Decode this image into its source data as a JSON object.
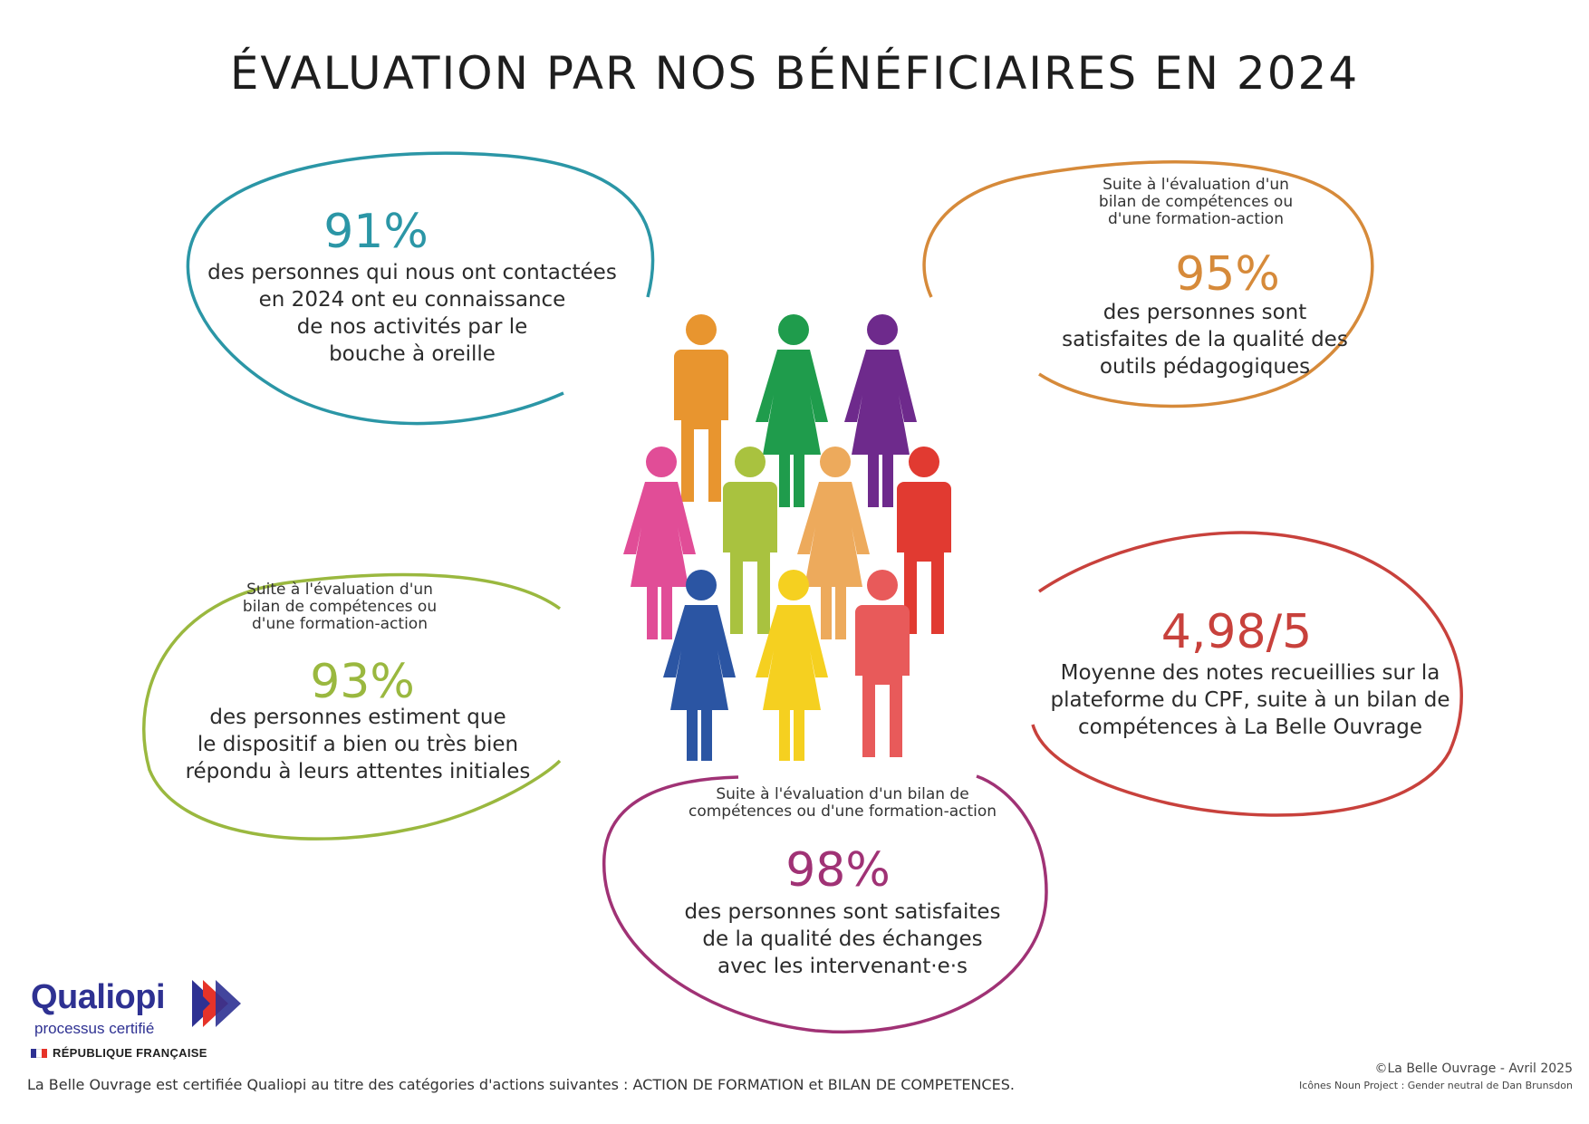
{
  "title": "ÉVALUATION PAR NOS BÉNÉFICIAIRES EN 2024",
  "colors": {
    "teal": "#2b96a6",
    "orange": "#d68a3a",
    "green": "#9ab83f",
    "red": "#c8413c",
    "purple": "#a03275"
  },
  "stats": [
    {
      "value": "91%",
      "context": [],
      "description": [
        "des personnes qui nous ont contactées",
        "en 2024 ont eu connaissance",
        "de nos activités par le",
        "bouche à oreille"
      ]
    },
    {
      "value": "95%",
      "context": [
        "Suite à l'évaluation d'un",
        "bilan de compétences ou",
        "d'une formation-action"
      ],
      "description": [
        "des personnes sont",
        "satisfaites de la qualité des",
        "outils pédagogiques"
      ]
    },
    {
      "value": "93%",
      "context": [
        "Suite à l'évaluation d'un",
        "bilan de compétences ou",
        "d'une formation-action"
      ],
      "description": [
        "des personnes estiment que",
        "le dispositif a bien ou très bien",
        "répondu à leurs attentes initiales"
      ]
    },
    {
      "value": "4,98/5",
      "context": [],
      "description": [
        "Moyenne des notes recueillies sur la",
        "plateforme du CPF, suite à un bilan de",
        "compétences à La Belle Ouvrage"
      ]
    },
    {
      "value": "98%",
      "context": [
        "Suite à l'évaluation d'un bilan de",
        "compétences ou d'une formation-action"
      ],
      "description": [
        "des personnes sont satisfaites",
        "de la qualité des échanges",
        "avec les intervenant·e·s"
      ]
    }
  ],
  "figures": {
    "icon": "gender-neutral-people-icons",
    "colors": [
      "#e8952f",
      "#1f9c4c",
      "#6e2a8c",
      "#e14d97",
      "#a9c23f",
      "#edaa5c",
      "#e13a31",
      "#2b55a3",
      "#f5d020",
      "#e85a5a"
    ]
  },
  "logo": {
    "name": "Qualiopi",
    "subtitle": "processus certifié",
    "republic": "RÉPUBLIQUE FRANÇAISE",
    "colors": [
      "#2e3192",
      "#e63329"
    ]
  },
  "footer": "La Belle Ouvrage est certifiée Qualiopi au titre des catégories d'actions suivantes : ACTION DE FORMATION et BILAN DE COMPETENCES.",
  "copyright": "©La Belle Ouvrage - Avril 2025",
  "icon_credit": "Icônes Noun Project : Gender neutral de Dan Brunsdon"
}
